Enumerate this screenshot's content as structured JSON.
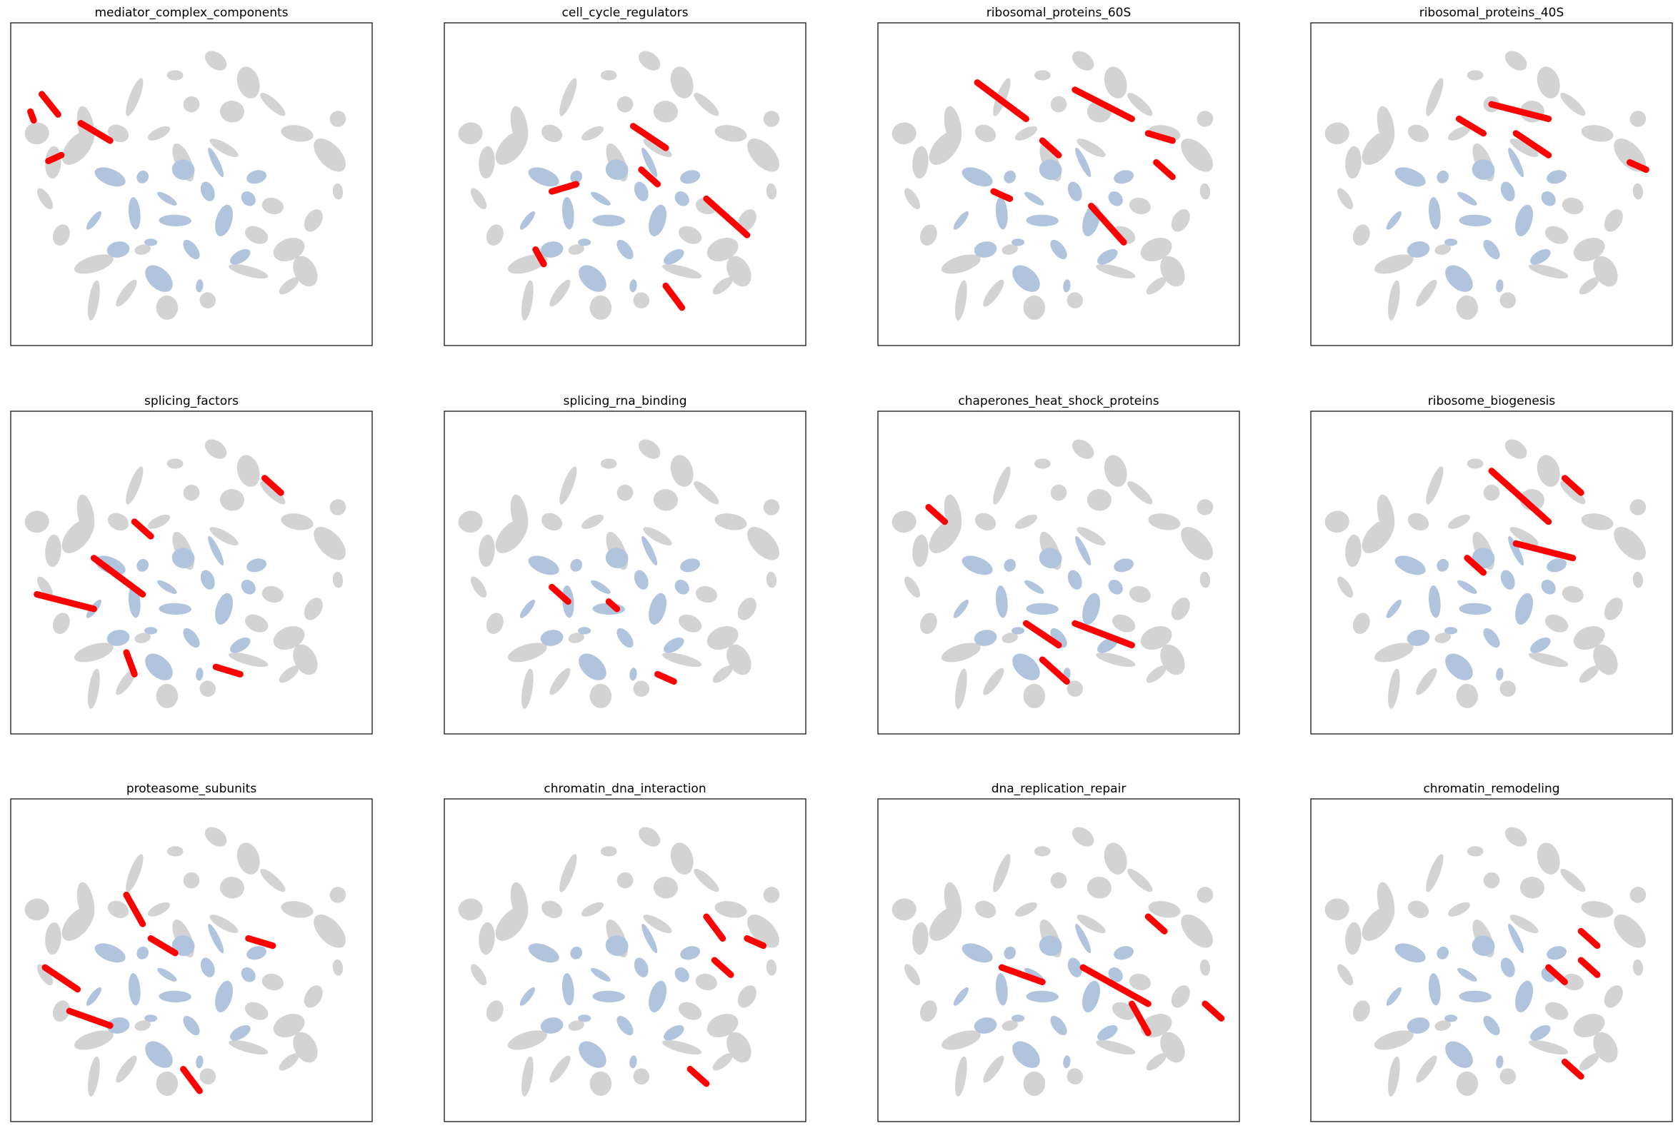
{
  "figure": {
    "background": "#ffffff",
    "colors": {
      "background_points": "#d3d3d3",
      "secondary_points": "#b0c4de",
      "highlight_points": "#ff0000",
      "axes_frame": "#000000"
    },
    "axes_ticks": "none",
    "grid": false
  },
  "chart_data": [
    {
      "type": "scatter",
      "title": "mediator_complex_components",
      "highlight": [
        [
          -0.92,
          -0.62,
          -0.82,
          -0.48
        ],
        [
          -0.68,
          -0.42,
          -0.5,
          -0.3
        ],
        [
          -0.99,
          -0.5,
          -0.97,
          -0.44
        ],
        [
          -0.88,
          -0.16,
          -0.8,
          -0.2
        ]
      ]
    },
    {
      "type": "scatter",
      "title": "cell_cycle_regulators",
      "highlight": [
        [
          0.05,
          -0.4,
          0.25,
          -0.25
        ],
        [
          0.1,
          -0.1,
          0.2,
          0.0
        ],
        [
          -0.45,
          0.05,
          -0.3,
          0.0
        ],
        [
          0.5,
          0.1,
          0.75,
          0.35
        ],
        [
          0.25,
          0.7,
          0.35,
          0.85
        ],
        [
          -0.55,
          0.45,
          -0.5,
          0.55
        ]
      ]
    },
    {
      "type": "scatter",
      "title": "ribosomal_proteins_60S",
      "highlight": [
        [
          -0.5,
          -0.7,
          -0.2,
          -0.45
        ],
        [
          0.1,
          -0.65,
          0.45,
          -0.45
        ],
        [
          -0.1,
          -0.3,
          0.0,
          -0.2
        ],
        [
          0.55,
          -0.35,
          0.7,
          -0.3
        ],
        [
          -0.4,
          0.05,
          -0.3,
          0.1
        ],
        [
          0.2,
          0.15,
          0.4,
          0.4
        ],
        [
          0.6,
          -0.15,
          0.7,
          -0.05
        ]
      ]
    },
    {
      "type": "scatter",
      "title": "ribosomal_proteins_40S",
      "highlight": [
        [
          0.0,
          -0.55,
          0.35,
          -0.45
        ],
        [
          0.15,
          -0.35,
          0.35,
          -0.2
        ],
        [
          0.85,
          -0.15,
          0.95,
          -0.1
        ],
        [
          -0.2,
          -0.45,
          -0.05,
          -0.35
        ]
      ]
    },
    {
      "type": "scatter",
      "title": "splicing_factors",
      "highlight": [
        [
          -0.6,
          -0.1,
          -0.3,
          0.15
        ],
        [
          -0.95,
          0.15,
          -0.6,
          0.25
        ],
        [
          -0.35,
          -0.35,
          -0.25,
          -0.25
        ],
        [
          -0.4,
          0.55,
          -0.35,
          0.7
        ],
        [
          0.45,
          -0.65,
          0.55,
          -0.55
        ],
        [
          0.15,
          0.65,
          0.3,
          0.7
        ]
      ]
    },
    {
      "type": "scatter",
      "title": "splicing_rna_binding",
      "highlight": [
        [
          -0.45,
          0.1,
          -0.35,
          0.2
        ],
        [
          0.2,
          0.7,
          0.3,
          0.75
        ],
        [
          -0.1,
          0.2,
          -0.05,
          0.25
        ]
      ]
    },
    {
      "type": "scatter",
      "title": "chaperones_heat_shock_proteins",
      "highlight": [
        [
          -0.8,
          -0.45,
          -0.7,
          -0.35
        ],
        [
          -0.2,
          0.35,
          0.0,
          0.5
        ],
        [
          -0.1,
          0.6,
          0.05,
          0.75
        ],
        [
          0.1,
          0.35,
          0.45,
          0.5
        ]
      ]
    },
    {
      "type": "scatter",
      "title": "ribosome_biogenesis",
      "highlight": [
        [
          0.0,
          -0.7,
          0.35,
          -0.35
        ],
        [
          0.45,
          -0.65,
          0.55,
          -0.55
        ],
        [
          0.15,
          -0.2,
          0.5,
          -0.1
        ],
        [
          -0.15,
          -0.1,
          -0.05,
          0.0
        ]
      ]
    },
    {
      "type": "scatter",
      "title": "proteasome_subunits",
      "highlight": [
        [
          -0.4,
          -0.45,
          -0.3,
          -0.25
        ],
        [
          -0.25,
          -0.15,
          -0.1,
          -0.05
        ],
        [
          -0.9,
          0.05,
          -0.7,
          0.2
        ],
        [
          -0.75,
          0.35,
          -0.5,
          0.45
        ],
        [
          -0.05,
          0.75,
          0.05,
          0.9
        ],
        [
          0.35,
          -0.15,
          0.5,
          -0.1
        ]
      ]
    },
    {
      "type": "scatter",
      "title": "chromatin_dna_interaction",
      "highlight": [
        [
          0.5,
          -0.3,
          0.6,
          -0.15
        ],
        [
          0.55,
          0.0,
          0.65,
          0.1
        ],
        [
          0.75,
          -0.15,
          0.85,
          -0.1
        ],
        [
          0.4,
          0.75,
          0.5,
          0.85
        ]
      ]
    },
    {
      "type": "scatter",
      "title": "dna_replication_repair",
      "highlight": [
        [
          -0.35,
          0.05,
          -0.1,
          0.15
        ],
        [
          0.15,
          0.05,
          0.55,
          0.3
        ],
        [
          0.45,
          0.3,
          0.55,
          0.5
        ],
        [
          0.55,
          -0.3,
          0.65,
          -0.2
        ],
        [
          0.9,
          0.3,
          1.0,
          0.4
        ]
      ]
    },
    {
      "type": "scatter",
      "title": "chromatin_remodeling",
      "highlight": [
        [
          0.35,
          0.05,
          0.45,
          0.15
        ],
        [
          0.55,
          0.0,
          0.65,
          0.1
        ],
        [
          0.55,
          -0.2,
          0.65,
          -0.1
        ],
        [
          0.45,
          0.7,
          0.55,
          0.8
        ]
      ]
    }
  ]
}
